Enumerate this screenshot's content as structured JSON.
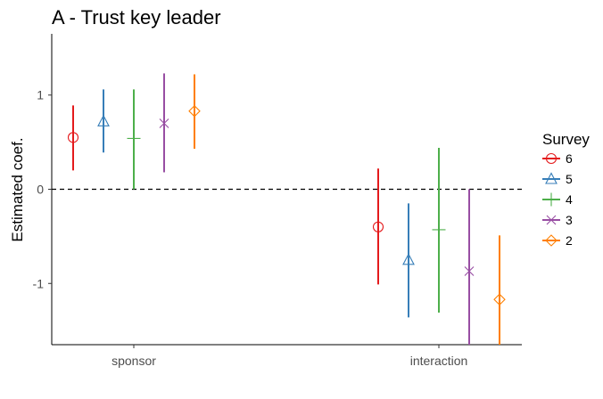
{
  "chart_data": {
    "type": "scatter",
    "title": "A - Trust key leader",
    "ylabel": "Estimated coef.",
    "xlabel": "",
    "categories": [
      "sponsor",
      "interaction"
    ],
    "ylim": [
      -1.65,
      1.65
    ],
    "yticks": [
      -1,
      0,
      1
    ],
    "ytick_labels": [
      "-1",
      "0",
      "1"
    ],
    "reference_line": 0,
    "legend": {
      "title": "Survey",
      "position": "right"
    },
    "series": [
      {
        "name": "6",
        "color": "#e41a1c",
        "shape": "circle",
        "points": [
          {
            "category": "sponsor",
            "estimate": 0.55,
            "lower": 0.2,
            "upper": 0.89
          },
          {
            "category": "interaction",
            "estimate": -0.4,
            "lower": -1.01,
            "upper": 0.22
          }
        ]
      },
      {
        "name": "5",
        "color": "#377eb8",
        "shape": "triangle",
        "points": [
          {
            "category": "sponsor",
            "estimate": 0.72,
            "lower": 0.39,
            "upper": 1.06
          },
          {
            "category": "interaction",
            "estimate": -0.75,
            "lower": -1.36,
            "upper": -0.15
          }
        ]
      },
      {
        "name": "4",
        "color": "#4daf4a",
        "shape": "plus",
        "points": [
          {
            "category": "sponsor",
            "estimate": 0.54,
            "lower": 0.0,
            "upper": 1.06
          },
          {
            "category": "interaction",
            "estimate": -0.43,
            "lower": -1.31,
            "upper": 0.44
          }
        ]
      },
      {
        "name": "3",
        "color": "#984ea3",
        "shape": "cross",
        "points": [
          {
            "category": "sponsor",
            "estimate": 0.7,
            "lower": 0.18,
            "upper": 1.23
          },
          {
            "category": "interaction",
            "estimate": -0.87,
            "lower": -1.65,
            "upper": 0.0
          }
        ]
      },
      {
        "name": "2",
        "color": "#ff7f00",
        "shape": "diamond",
        "points": [
          {
            "category": "sponsor",
            "estimate": 0.83,
            "lower": 0.43,
            "upper": 1.22
          },
          {
            "category": "interaction",
            "estimate": -1.17,
            "lower": -1.65,
            "upper": -0.49
          }
        ]
      }
    ]
  }
}
